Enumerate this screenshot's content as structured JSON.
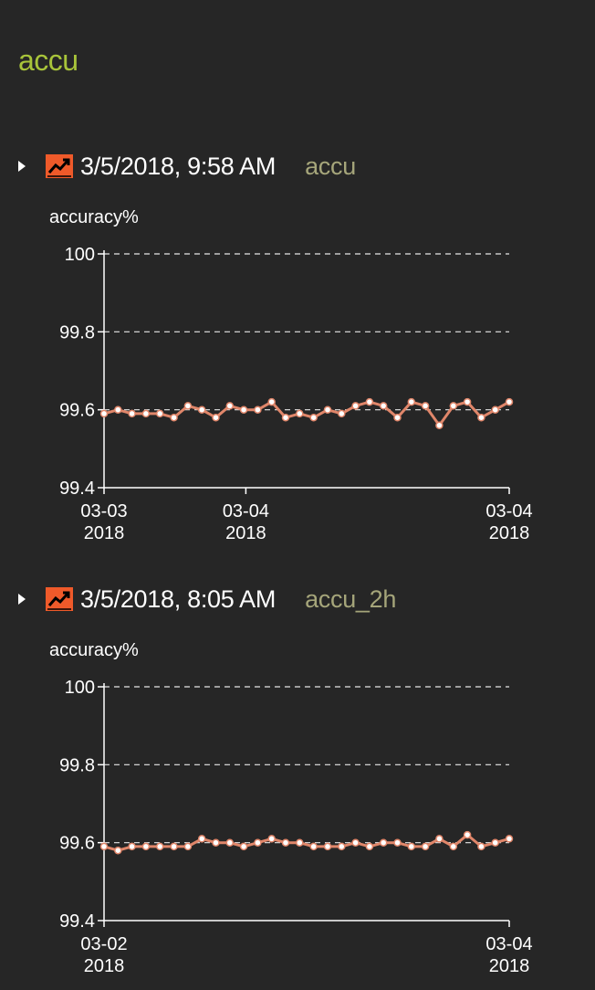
{
  "page": {
    "title": "accu"
  },
  "colors": {
    "title": "#a8c43a",
    "run_name": "#a5a57a",
    "line": "#e0866a",
    "point_fill": "#ffffff",
    "icon_bg": "#ef5a2a",
    "background": "#262626"
  },
  "panels": [
    {
      "timestamp": "3/5/2018, 9:58 AM",
      "run_name": "accu",
      "icon": "line-chart-icon",
      "toggle_icon": "triangle-right-icon"
    },
    {
      "timestamp": "3/5/2018, 8:05 AM",
      "run_name": "accu_2h",
      "icon": "line-chart-icon",
      "toggle_icon": "triangle-right-icon"
    }
  ],
  "chart_data": [
    {
      "type": "line",
      "title": "accuracy%",
      "ylabel": "accuracy%",
      "ylim": [
        99.4,
        100
      ],
      "yticks": [
        "100",
        "99.8",
        "99.6",
        "99.4"
      ],
      "grid": "horizontal-dashed",
      "xticks": [
        {
          "pos": 0,
          "line1": "03-03",
          "line2": "2018"
        },
        {
          "pos": 0.35,
          "line1": "03-04",
          "line2": "2018"
        },
        {
          "pos": 1,
          "line1": "03-04",
          "line2": "2018"
        }
      ],
      "values": [
        99.59,
        99.6,
        99.59,
        99.59,
        99.59,
        99.58,
        99.61,
        99.6,
        99.58,
        99.61,
        99.6,
        99.6,
        99.62,
        99.58,
        99.59,
        99.58,
        99.6,
        99.59,
        99.61,
        99.62,
        99.61,
        99.58,
        99.62,
        99.61,
        99.56,
        99.61,
        99.62,
        99.58,
        99.6,
        99.62
      ]
    },
    {
      "type": "line",
      "title": "accuracy%",
      "ylabel": "accuracy%",
      "ylim": [
        99.4,
        100
      ],
      "yticks": [
        "100",
        "99.8",
        "99.6",
        "99.4"
      ],
      "grid": "horizontal-dashed",
      "xticks": [
        {
          "pos": 0,
          "line1": "03-02",
          "line2": "2018"
        },
        {
          "pos": 1,
          "line1": "03-04",
          "line2": "2018"
        }
      ],
      "values": [
        99.59,
        99.58,
        99.59,
        99.59,
        99.59,
        99.59,
        99.59,
        99.61,
        99.6,
        99.6,
        99.59,
        99.6,
        99.61,
        99.6,
        99.6,
        99.59,
        99.59,
        99.59,
        99.6,
        99.59,
        99.6,
        99.6,
        99.59,
        99.59,
        99.61,
        99.59,
        99.62,
        99.59,
        99.6,
        99.61
      ]
    }
  ]
}
